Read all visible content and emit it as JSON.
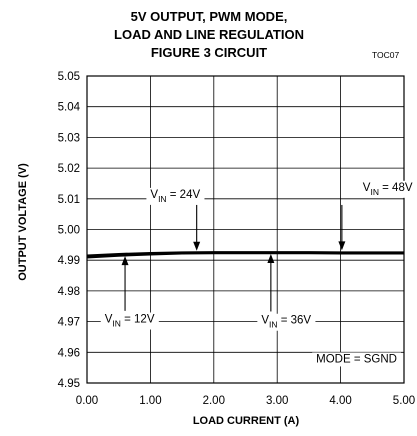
{
  "chart_data": {
    "type": "line",
    "title_lines": [
      "5V OUTPUT, PWM MODE,",
      "LOAD AND LINE REGULATION",
      "FIGURE 3 CIRCUIT"
    ],
    "figure_tag": "TOC07",
    "xlabel": "LOAD CURRENT (A)",
    "ylabel": "OUTPUT VOLTAGE (V)",
    "xlim": [
      0,
      5
    ],
    "ylim": [
      4.95,
      5.05
    ],
    "x_ticks": [
      "0.00",
      "1.00",
      "2.00",
      "3.00",
      "4.00",
      "5.00"
    ],
    "y_ticks": [
      "4.95",
      "4.96",
      "4.97",
      "4.98",
      "4.99",
      "5.00",
      "5.01",
      "5.02",
      "5.03",
      "5.04",
      "5.05"
    ],
    "grid": true,
    "series": [
      {
        "name": "VIN = 12V",
        "x": [
          0,
          0.5,
          1.0,
          1.5,
          2.0,
          2.5,
          3.0,
          3.5,
          4.0,
          4.5,
          5.0
        ],
        "values": [
          4.9908,
          4.9914,
          4.9918,
          4.9921,
          4.9922,
          4.9922,
          4.9922,
          4.9922,
          4.9921,
          4.9921,
          4.9921
        ]
      },
      {
        "name": "VIN = 24V",
        "x": [
          0,
          0.5,
          1.0,
          1.5,
          2.0,
          2.5,
          3.0,
          3.5,
          4.0,
          4.5,
          5.0
        ],
        "values": [
          4.9912,
          4.9917,
          4.9921,
          4.9923,
          4.9924,
          4.9924,
          4.9924,
          4.9924,
          4.9923,
          4.9923,
          4.9923
        ]
      },
      {
        "name": "VIN = 36V",
        "x": [
          0,
          0.5,
          1.0,
          1.5,
          2.0,
          2.5,
          3.0,
          3.5,
          4.0,
          4.5,
          5.0
        ],
        "values": [
          4.9914,
          4.9919,
          4.9922,
          4.9924,
          4.9925,
          4.9925,
          4.9925,
          4.9925,
          4.9924,
          4.9924,
          4.9924
        ]
      },
      {
        "name": "VIN = 48V",
        "x": [
          0,
          0.5,
          1.0,
          1.5,
          2.0,
          2.5,
          3.0,
          3.5,
          4.0,
          4.5,
          5.0
        ],
        "values": [
          4.9916,
          4.9921,
          4.9924,
          4.9926,
          4.9927,
          4.9927,
          4.9927,
          4.9927,
          4.9926,
          4.9926,
          4.9926
        ]
      }
    ],
    "annotations": [
      {
        "name": "vin-24v-label",
        "prefix": "V",
        "sub": "IN",
        "suffix": " = 24V",
        "x": 1.0,
        "y": 5.0103,
        "arrow_x": 1.73,
        "arrow_from": 5.008,
        "arrow_to": 4.9926
      },
      {
        "name": "vin-48v-label",
        "prefix": "V",
        "sub": "IN",
        "suffix": " = 48V",
        "x": 4.35,
        "y": 5.0126,
        "arrow_x": 4.02,
        "arrow_from": 5.008,
        "arrow_to": 4.9927
      },
      {
        "name": "vin-12v-label",
        "prefix": "V",
        "sub": "IN",
        "suffix": " = 12V",
        "x": 0.28,
        "y": 4.9697,
        "arrow_x": 0.6,
        "arrow_from": 4.9735,
        "arrow_to": 4.9918
      },
      {
        "name": "vin-36v-label",
        "prefix": "V",
        "sub": "IN",
        "suffix": " = 36V",
        "x": 2.75,
        "y": 4.9693,
        "arrow_x": 2.9,
        "arrow_from": 4.9733,
        "arrow_to": 4.9925
      }
    ],
    "mode_label": "MODE = SGND"
  }
}
